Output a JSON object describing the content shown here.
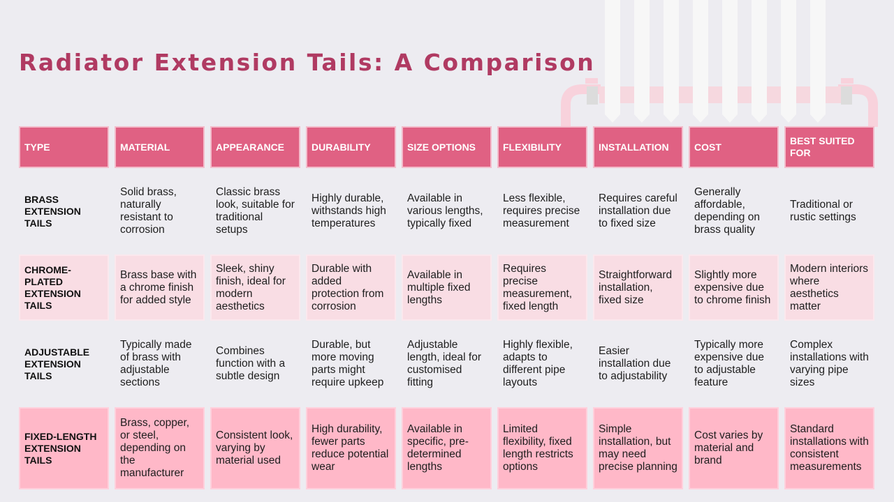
{
  "title": "Radiator Extension Tails: A Comparison",
  "colors": {
    "background": "#edecf1",
    "title": "#b03a62",
    "header": "#e06183",
    "row_pale": "#f9dde4",
    "row_pink": "#ffb8c8"
  },
  "icons": [
    "radiator-illustration-icon"
  ],
  "table": {
    "headers": [
      "TYPE",
      "MATERIAL",
      "APPEARANCE",
      "DURABILITY",
      "SIZE OPTIONS",
      "FLEXIBILITY",
      "INSTALLATION",
      "COST",
      "BEST SUITED FOR"
    ],
    "rows": [
      {
        "style": "plain",
        "cells": [
          "BRASS EXTENSION TAILS",
          "Solid brass, naturally resistant to corrosion",
          "Classic brass look, suitable for traditional setups",
          "Highly durable, withstands high temperatures",
          "Available in various lengths, typically fixed",
          "Less flexible, requires precise measurement",
          "Requires careful installation due to fixed size",
          "Generally affordable, depending on brass quality",
          "Traditional or rustic settings"
        ]
      },
      {
        "style": "pale",
        "cells": [
          "CHROME-PLATED EXTENSION TAILS",
          "Brass base with a chrome finish for added style",
          "Sleek, shiny finish, ideal for modern aesthetics",
          "Durable with added protection from corrosion",
          "Available in multiple fixed lengths",
          "Requires precise measurement, fixed length",
          "Straightforward installation, fixed size",
          "Slightly more expensive due to chrome finish",
          "Modern interiors where aesthetics matter"
        ]
      },
      {
        "style": "plain",
        "cells": [
          "ADJUSTABLE EXTENSION TAILS",
          "Typically made of brass with adjustable sections",
          "Combines function with a subtle design",
          "Durable, but more moving parts might require upkeep",
          "Adjustable length, ideal for customised fitting",
          "Highly flexible, adapts to different pipe layouts",
          "Easier installation due to adjustability",
          "Typically more expensive due to adjustable feature",
          "Complex installations with varying pipe sizes"
        ]
      },
      {
        "style": "pink",
        "cells": [
          "FIXED-LENGTH EXTENSION TAILS",
          "Brass, copper, or steel, depending on the manufacturer",
          "Consistent look, varying by material used",
          "High durability, fewer parts reduce potential wear",
          "Available in specific, pre-determined lengths",
          "Limited flexibility, fixed length restricts options",
          "Simple installation, but may need precise planning",
          "Cost varies by material and brand",
          "Standard installations with consistent measurements"
        ]
      }
    ]
  }
}
